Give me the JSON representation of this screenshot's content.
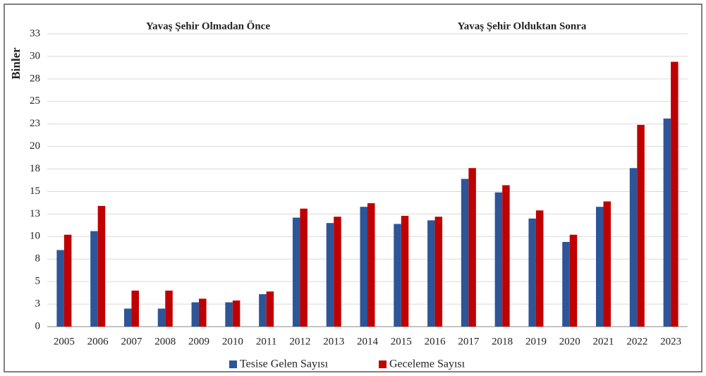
{
  "chart_data": {
    "type": "bar",
    "annotations": [
      "Yavaş Şehir Olmadan Önce",
      "Yavaş Şehir Olduktan Sonra"
    ],
    "ylabel": "Binler",
    "categories": [
      "2005",
      "2006",
      "2007",
      "2008",
      "2009",
      "2010",
      "2011",
      "2012",
      "2013",
      "2014",
      "2015",
      "2016",
      "2017",
      "2018",
      "2019",
      "2020",
      "2021",
      "2022",
      "2023"
    ],
    "series": [
      {
        "name": "Tesise Gelen Sayısı",
        "color": "#2e5597",
        "values": [
          8.5,
          10.6,
          2.0,
          2.0,
          2.7,
          2.7,
          3.6,
          12.1,
          11.5,
          13.3,
          11.4,
          11.8,
          16.4,
          14.9,
          12.0,
          9.4,
          13.3,
          17.6,
          23.1
        ]
      },
      {
        "name": "Geceleme Sayısı",
        "color": "#c00000",
        "values": [
          10.2,
          13.4,
          4.0,
          4.0,
          3.1,
          2.9,
          3.9,
          13.1,
          12.2,
          13.7,
          12.3,
          12.2,
          17.6,
          15.7,
          12.9,
          10.2,
          13.9,
          22.4,
          29.4
        ]
      }
    ],
    "ylim": [
      0,
      32.5
    ],
    "yticks": [
      0,
      {
        "value": 2.5,
        "label": "3"
      },
      5,
      {
        "value": 7.5,
        "label": "8"
      },
      10,
      {
        "value": 12.5,
        "label": "13"
      },
      15,
      {
        "value": 17.5,
        "label": "18"
      },
      20,
      {
        "value": 22.5,
        "label": "23"
      },
      25,
      {
        "value": 27.5,
        "label": "28"
      },
      30,
      {
        "value": 32.5,
        "label": "33"
      }
    ],
    "grid": true,
    "legend": "bottom"
  }
}
